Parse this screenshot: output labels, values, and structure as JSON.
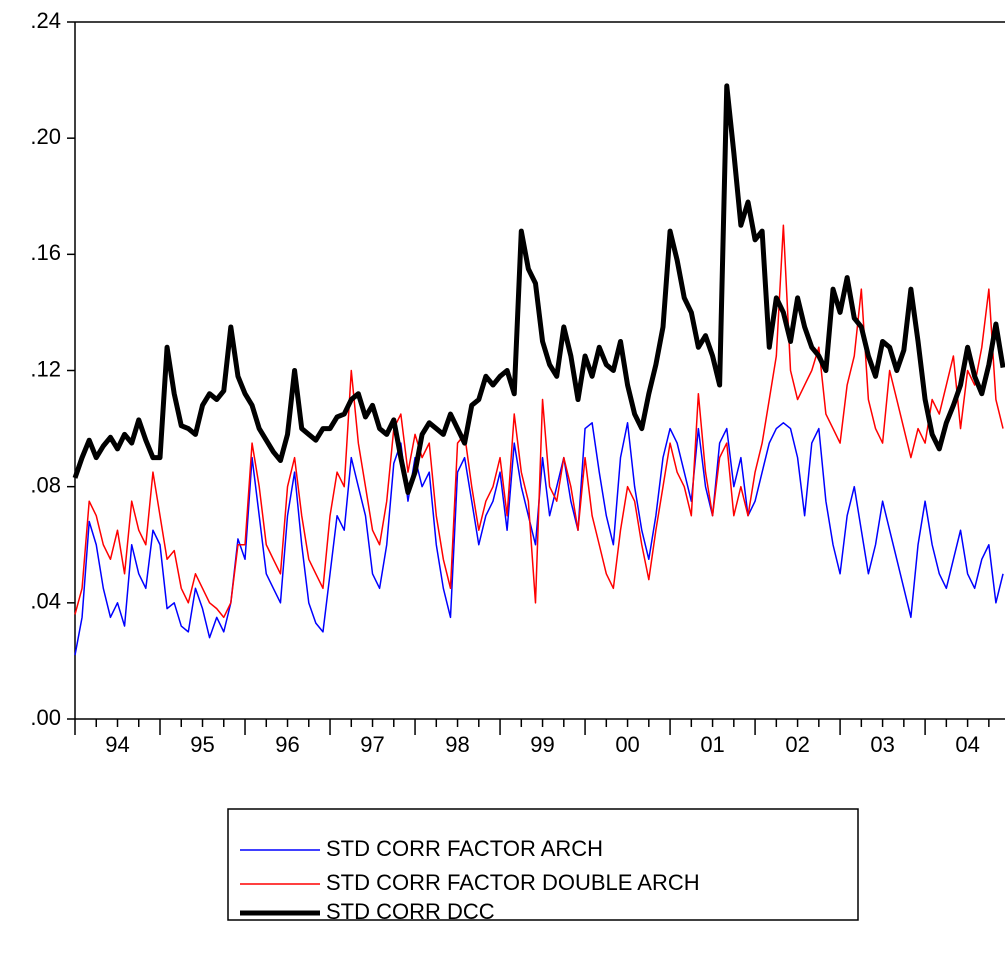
{
  "chart_data": {
    "type": "line",
    "x": [
      1994,
      1994.083,
      1994.167,
      1994.25,
      1994.333,
      1994.417,
      1994.5,
      1994.583,
      1994.667,
      1994.75,
      1994.833,
      1994.917,
      1995,
      1995.083,
      1995.167,
      1995.25,
      1995.333,
      1995.417,
      1995.5,
      1995.583,
      1995.667,
      1995.75,
      1995.833,
      1995.917,
      1996,
      1996.083,
      1996.167,
      1996.25,
      1996.333,
      1996.417,
      1996.5,
      1996.583,
      1996.667,
      1996.75,
      1996.833,
      1996.917,
      1997,
      1997.083,
      1997.167,
      1997.25,
      1997.333,
      1997.417,
      1997.5,
      1997.583,
      1997.667,
      1997.75,
      1997.833,
      1997.917,
      1998,
      1998.083,
      1998.167,
      1998.25,
      1998.333,
      1998.417,
      1998.5,
      1998.583,
      1998.667,
      1998.75,
      1998.833,
      1998.917,
      1999,
      1999.083,
      1999.167,
      1999.25,
      1999.333,
      1999.417,
      1999.5,
      1999.583,
      1999.667,
      1999.75,
      1999.833,
      1999.917,
      2000,
      2000.083,
      2000.167,
      2000.25,
      2000.333,
      2000.417,
      2000.5,
      2000.583,
      2000.667,
      2000.75,
      2000.833,
      2000.917,
      2001,
      2001.083,
      2001.167,
      2001.25,
      2001.333,
      2001.417,
      2001.5,
      2001.583,
      2001.667,
      2001.75,
      2001.833,
      2001.917,
      2002,
      2002.083,
      2002.167,
      2002.25,
      2002.333,
      2002.417,
      2002.5,
      2002.583,
      2002.667,
      2002.75,
      2002.833,
      2002.917,
      2003,
      2003.083,
      2003.167,
      2003.25,
      2003.333,
      2003.417,
      2003.5,
      2003.583,
      2003.667,
      2003.75,
      2003.833,
      2003.917,
      2004,
      2004.083,
      2004.167,
      2004.25,
      2004.333,
      2004.417,
      2004.5,
      2004.583,
      2004.667,
      2004.75,
      2004.833,
      2004.917
    ],
    "series": [
      {
        "name": "STD CORR FACTOR ARCH",
        "color": "#0000ff",
        "width": 1.5,
        "values": [
          0.022,
          0.035,
          0.068,
          0.06,
          0.045,
          0.035,
          0.04,
          0.032,
          0.06,
          0.05,
          0.045,
          0.065,
          0.06,
          0.038,
          0.04,
          0.032,
          0.03,
          0.045,
          0.038,
          0.028,
          0.035,
          0.03,
          0.04,
          0.062,
          0.055,
          0.09,
          0.07,
          0.05,
          0.045,
          0.04,
          0.07,
          0.085,
          0.06,
          0.04,
          0.033,
          0.03,
          0.05,
          0.07,
          0.065,
          0.09,
          0.08,
          0.07,
          0.05,
          0.045,
          0.06,
          0.088,
          0.095,
          0.075,
          0.09,
          0.08,
          0.085,
          0.06,
          0.045,
          0.035,
          0.085,
          0.09,
          0.075,
          0.06,
          0.07,
          0.075,
          0.085,
          0.065,
          0.095,
          0.08,
          0.07,
          0.06,
          0.09,
          0.07,
          0.08,
          0.09,
          0.075,
          0.065,
          0.1,
          0.102,
          0.085,
          0.07,
          0.06,
          0.09,
          0.102,
          0.08,
          0.065,
          0.055,
          0.07,
          0.09,
          0.1,
          0.095,
          0.085,
          0.075,
          0.1,
          0.08,
          0.07,
          0.095,
          0.1,
          0.08,
          0.09,
          0.07,
          0.075,
          0.085,
          0.095,
          0.1,
          0.102,
          0.1,
          0.09,
          0.07,
          0.095,
          0.1,
          0.075,
          0.06,
          0.05,
          0.07,
          0.08,
          0.065,
          0.05,
          0.06,
          0.075,
          0.065,
          0.055,
          0.045,
          0.035,
          0.06,
          0.075,
          0.06,
          0.05,
          0.045,
          0.055,
          0.065,
          0.05,
          0.045,
          0.055,
          0.06,
          0.04,
          0.05
        ]
      },
      {
        "name": "STD CORR FACTOR DOUBLE ARCH",
        "color": "#ff0000",
        "width": 1.5,
        "values": [
          0.036,
          0.045,
          0.075,
          0.07,
          0.06,
          0.055,
          0.065,
          0.05,
          0.075,
          0.065,
          0.06,
          0.085,
          0.07,
          0.055,
          0.058,
          0.045,
          0.04,
          0.05,
          0.045,
          0.04,
          0.038,
          0.035,
          0.04,
          0.06,
          0.06,
          0.095,
          0.08,
          0.06,
          0.055,
          0.05,
          0.08,
          0.09,
          0.07,
          0.055,
          0.05,
          0.045,
          0.07,
          0.085,
          0.08,
          0.12,
          0.095,
          0.08,
          0.065,
          0.06,
          0.075,
          0.1,
          0.105,
          0.085,
          0.098,
          0.09,
          0.095,
          0.07,
          0.055,
          0.045,
          0.095,
          0.098,
          0.08,
          0.065,
          0.075,
          0.08,
          0.09,
          0.07,
          0.105,
          0.085,
          0.075,
          0.04,
          0.11,
          0.08,
          0.075,
          0.09,
          0.08,
          0.065,
          0.09,
          0.07,
          0.06,
          0.05,
          0.045,
          0.065,
          0.08,
          0.075,
          0.06,
          0.048,
          0.065,
          0.08,
          0.095,
          0.085,
          0.08,
          0.07,
          0.112,
          0.085,
          0.07,
          0.09,
          0.095,
          0.07,
          0.08,
          0.07,
          0.085,
          0.095,
          0.11,
          0.125,
          0.17,
          0.12,
          0.11,
          0.115,
          0.12,
          0.128,
          0.105,
          0.1,
          0.095,
          0.115,
          0.125,
          0.148,
          0.11,
          0.1,
          0.095,
          0.12,
          0.11,
          0.1,
          0.09,
          0.1,
          0.095,
          0.11,
          0.105,
          0.115,
          0.125,
          0.1,
          0.12,
          0.115,
          0.128,
          0.148,
          0.11,
          0.1
        ]
      },
      {
        "name": "STD CORR DCC",
        "color": "#000000",
        "width": 5,
        "values": [
          0.083,
          0.09,
          0.096,
          0.09,
          0.094,
          0.097,
          0.093,
          0.098,
          0.095,
          0.103,
          0.096,
          0.09,
          0.09,
          0.128,
          0.112,
          0.101,
          0.1,
          0.098,
          0.108,
          0.112,
          0.11,
          0.113,
          0.135,
          0.118,
          0.112,
          0.108,
          0.1,
          0.096,
          0.092,
          0.089,
          0.098,
          0.12,
          0.1,
          0.098,
          0.096,
          0.1,
          0.1,
          0.104,
          0.105,
          0.11,
          0.112,
          0.104,
          0.108,
          0.1,
          0.098,
          0.103,
          0.09,
          0.078,
          0.085,
          0.098,
          0.102,
          0.1,
          0.098,
          0.105,
          0.1,
          0.095,
          0.108,
          0.11,
          0.118,
          0.115,
          0.118,
          0.12,
          0.112,
          0.168,
          0.155,
          0.15,
          0.13,
          0.122,
          0.118,
          0.135,
          0.125,
          0.11,
          0.125,
          0.118,
          0.128,
          0.122,
          0.12,
          0.13,
          0.115,
          0.105,
          0.1,
          0.112,
          0.122,
          0.135,
          0.168,
          0.158,
          0.145,
          0.14,
          0.128,
          0.132,
          0.125,
          0.115,
          0.218,
          0.195,
          0.17,
          0.178,
          0.165,
          0.168,
          0.128,
          0.145,
          0.14,
          0.13,
          0.145,
          0.135,
          0.128,
          0.125,
          0.12,
          0.148,
          0.14,
          0.152,
          0.138,
          0.135,
          0.125,
          0.118,
          0.13,
          0.128,
          0.12,
          0.127,
          0.148,
          0.13,
          0.11,
          0.098,
          0.093,
          0.102,
          0.108,
          0.115,
          0.128,
          0.118,
          0.112,
          0.122,
          0.136,
          0.121
        ]
      }
    ],
    "xlim": [
      1994,
      2004.94
    ],
    "xticks": [
      {
        "value": 1994.5,
        "label": "94"
      },
      {
        "value": 1995.5,
        "label": "95"
      },
      {
        "value": 1996.5,
        "label": "96"
      },
      {
        "value": 1997.5,
        "label": "97"
      },
      {
        "value": 1998.5,
        "label": "98"
      },
      {
        "value": 1999.5,
        "label": "99"
      },
      {
        "value": 2000.5,
        "label": "00"
      },
      {
        "value": 2001.5,
        "label": "01"
      },
      {
        "value": 2002.5,
        "label": "02"
      },
      {
        "value": 2003.5,
        "label": "03"
      },
      {
        "value": 2004.5,
        "label": "04"
      }
    ],
    "ylim": [
      0,
      0.24
    ],
    "yticks": [
      {
        "value": 0,
        "label": ".00"
      },
      {
        "value": 0.04,
        "label": ".04"
      },
      {
        "value": 0.08,
        "label": ".08"
      },
      {
        "value": 0.12,
        "label": ".12"
      },
      {
        "value": 0.16,
        "label": ".16"
      },
      {
        "value": 0.2,
        "label": ".20"
      },
      {
        "value": 0.24,
        "label": ".24"
      }
    ],
    "grid": false
  }
}
